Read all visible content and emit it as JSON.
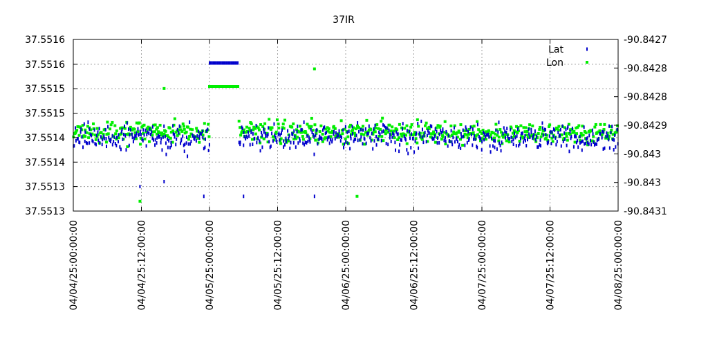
{
  "chart_data": {
    "type": "scatter",
    "title": "37IR",
    "xlabel": "",
    "ylabel": "",
    "y2label": "",
    "grid": true,
    "legend_position": "top-right",
    "x_range": [
      "04/04/25:00:00:00",
      "04/08/25:00:00:00"
    ],
    "x_ticks": [
      "04/04/25:00:00:00",
      "04/04/25:12:00:00",
      "04/05/25:00:00:00",
      "04/05/25:12:00:00",
      "04/06/25:00:00:00",
      "04/06/25:12:00:00",
      "04/07/25:00:00:00",
      "04/07/25:12:00:00",
      "04/08/25:00:00:00"
    ],
    "y_left": {
      "range": [
        37.55128,
        37.55163
      ],
      "ticks": [
        37.55128,
        37.551315,
        37.55135,
        37.551385,
        37.55142,
        37.551455,
        37.55149,
        37.551525,
        37.55156,
        37.551595,
        37.55163
      ],
      "tick_labels": [
        "37.5513",
        "37.5513",
        "37.5514",
        "37.5514",
        "37.5514",
        "37.5515",
        "37.5515",
        "37.5515",
        "37.5516",
        "37.5516",
        "37.5516"
      ],
      "shown_ticks": [
        0,
        2,
        4,
        6,
        8,
        10
      ],
      "drawn_labels": [
        "37.5513",
        "37.5513",
        "37.5514",
        "37.5514",
        "37.5515",
        "37.5515",
        "37.5516",
        "37.5516"
      ]
    },
    "y_right": {
      "range": [
        -90.84305,
        -90.8427
      ],
      "tick_labels": [
        "-90.8431",
        "-90.843",
        "-90.843",
        "-90.8429",
        "-90.8428",
        "-90.8428",
        "-90.8427"
      ]
    },
    "series": [
      {
        "name": "Lat",
        "color": "#0000cc",
        "marker": "short-dash",
        "axis": "left",
        "band_center": 37.55143,
        "band_spread": 4.5e-05,
        "plateau": {
          "x_start": "04/05/25:00:00:00",
          "x_end": "04/05/25:05:00:00",
          "y": 37.5516
        },
        "outliers": [
          {
            "x": "04/04/25:11:45:00",
            "y": 37.55133
          },
          {
            "x": "04/04/25:16:00:00",
            "y": 37.55134
          },
          {
            "x": "04/04/25:23:00:00",
            "y": 37.55131
          },
          {
            "x": "04/05/25:06:00:00",
            "y": 37.55131
          },
          {
            "x": "04/05/25:18:30:00",
            "y": 37.55131
          }
        ]
      },
      {
        "name": "Lon",
        "color": "#00ee00",
        "marker": "square",
        "axis": "right",
        "band_center": -90.84289,
        "band_spread": 3.5e-05,
        "plateau": {
          "x_start": "04/05/25:00:00:00",
          "x_end": "04/05/25:05:00:00",
          "y": -90.84282
        },
        "outliers": [
          {
            "x": "04/04/25:11:45:00",
            "y": -90.84303
          },
          {
            "x": "04/04/25:16:00:00",
            "y": -90.8428
          },
          {
            "x": "04/05/25:18:30:00",
            "y": -90.84276
          },
          {
            "x": "04/06/25:02:00:00",
            "y": -90.84302
          }
        ]
      }
    ]
  }
}
